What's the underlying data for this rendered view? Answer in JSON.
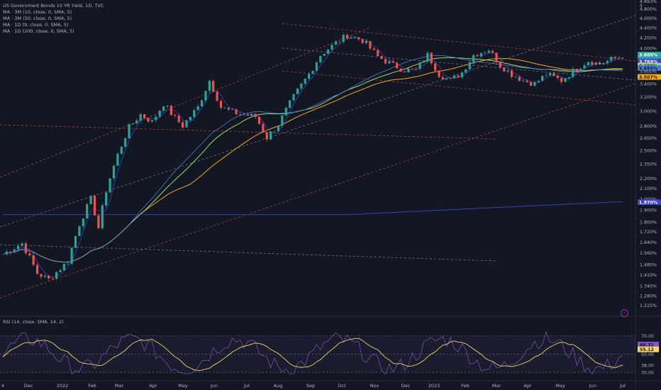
{
  "legend": {
    "title": "US Government Bonds 10 YR Yield, 1D, TVC",
    "ma_lines": [
      {
        "label": "MA · 3M (10, close, 0, SMA, 5)"
      },
      {
        "label": "MA · 3M (50, close, 0, SMA, 5)"
      },
      {
        "label": "MA · 1D (9, close, 0, SMA, 5)"
      },
      {
        "label": "MA · 1D (200, close, 0, SMA, 5)"
      }
    ]
  },
  "rsi_legend": "RSI (14, close, SMA, 14, 2)",
  "colors": {
    "background": "#131722",
    "up": "#26a69a",
    "down": "#ef5350",
    "ma_green": "#a5d66b",
    "ma_orange": "#f5a623",
    "ma_blue": "#3b44c8",
    "ma_cyan": "#4a7bd8",
    "rsi": "#7e57c2",
    "rsi_ma": "#f3d66b"
  },
  "chart_data": {
    "type": "line",
    "scale": "log",
    "x_ticks": [
      "4",
      "Dec",
      "2022",
      "Feb",
      "Mar",
      "Apr",
      "May",
      "Jun",
      "Jul",
      "Aug",
      "Sep",
      "Oct",
      "Nov",
      "Dec",
      "2023",
      "Feb",
      "Mar",
      "Apr",
      "May",
      "Jun",
      "Jul"
    ],
    "y_ticks": [
      "1.225%",
      "1.280%",
      "1.340%",
      "1.410%",
      "1.480%",
      "1.560%",
      "1.640%",
      "1.720%",
      "1.800%",
      "1.900%",
      "2.000%",
      "2.100%",
      "2.200%",
      "2.350%",
      "2.500%",
      "2.650%",
      "2.800%",
      "3.000%",
      "3.200%",
      "3.400%",
      "3.600%",
      "3.800%",
      "4.000%",
      "4.200%",
      "4.400%",
      "4.600%",
      "4.800%"
    ],
    "y_ticks_partial": [
      "4.893%",
      "5"
    ],
    "price_labels": [
      {
        "text": "3.886%",
        "sub": "11:00:03",
        "value": 3.886,
        "color": "#26a69a"
      },
      {
        "text": "3.769%",
        "value": 3.769,
        "color": "#3b44c8"
      },
      {
        "text": "3.692%",
        "value": 3.692,
        "color": "#a5d66b"
      },
      {
        "text": "3.655%",
        "value": 3.655,
        "color": "#4a7bd8"
      },
      {
        "text": "3.507%",
        "value": 3.507,
        "color": "#f5a623"
      },
      {
        "text": "1.970%",
        "value": 1.97,
        "color": "#3b44c8"
      }
    ],
    "rsi_ticks": [
      "70.00",
      "50.00",
      "38.00",
      "30.00"
    ],
    "rsi_labels": [
      {
        "text": "60.31",
        "value": 60.31,
        "color": "#7e57c2"
      },
      {
        "text": "55.12",
        "value": 55.12,
        "color": "#f3d66b"
      }
    ],
    "price_path": [
      [
        0,
        1.55
      ],
      [
        5,
        1.63
      ],
      [
        9,
        1.42
      ],
      [
        12,
        1.38
      ],
      [
        17,
        1.5
      ],
      [
        20,
        1.78
      ],
      [
        23,
        2.0
      ],
      [
        25,
        1.75
      ],
      [
        27,
        2.08
      ],
      [
        30,
        2.45
      ],
      [
        33,
        2.78
      ],
      [
        36,
        2.95
      ],
      [
        39,
        2.85
      ],
      [
        42,
        3.1
      ],
      [
        45,
        2.9
      ],
      [
        47,
        2.8
      ],
      [
        51,
        3.05
      ],
      [
        54,
        3.45
      ],
      [
        57,
        3.05
      ],
      [
        60,
        2.98
      ],
      [
        63,
        2.95
      ],
      [
        66,
        2.92
      ],
      [
        69,
        2.65
      ],
      [
        72,
        2.82
      ],
      [
        76,
        3.2
      ],
      [
        80,
        3.55
      ],
      [
        83,
        3.88
      ],
      [
        87,
        4.1
      ],
      [
        90,
        4.25
      ],
      [
        94,
        4.15
      ],
      [
        98,
        3.85
      ],
      [
        102,
        3.7
      ],
      [
        105,
        3.62
      ],
      [
        108,
        3.62
      ],
      [
        111,
        3.88
      ],
      [
        114,
        3.55
      ],
      [
        117,
        3.45
      ],
      [
        120,
        3.58
      ],
      [
        123,
        3.88
      ],
      [
        127,
        3.98
      ],
      [
        130,
        3.7
      ],
      [
        133,
        3.55
      ],
      [
        136,
        3.45
      ],
      [
        139,
        3.4
      ],
      [
        142,
        3.55
      ],
      [
        146,
        3.45
      ],
      [
        150,
        3.65
      ],
      [
        153,
        3.78
      ],
      [
        156,
        3.72
      ],
      [
        159,
        3.8
      ],
      [
        162,
        3.86
      ]
    ]
  }
}
